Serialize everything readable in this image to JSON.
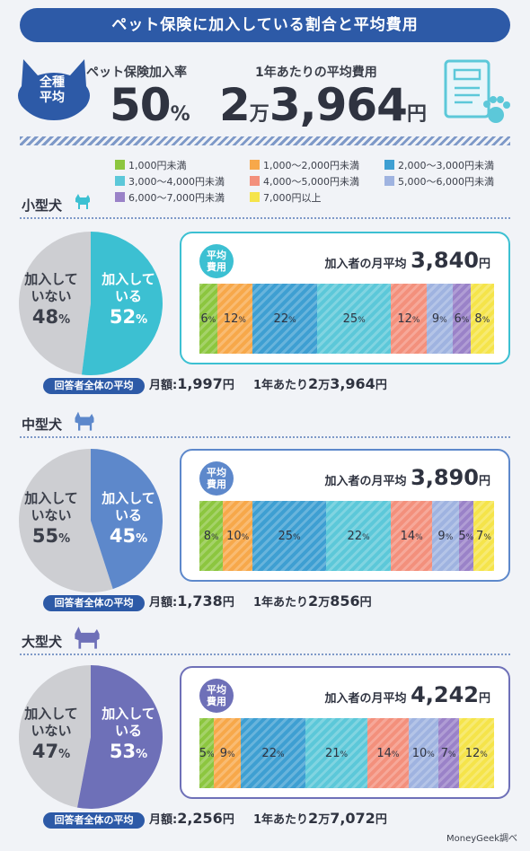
{
  "title": "ペット保険に加入している割合と平均費用",
  "summary": {
    "badge_line1": "全種",
    "badge_line2": "平均",
    "rate_label": "ペット保険加入率",
    "rate_value": "50",
    "rate_unit": "%",
    "cost_label": "1年あたりの平均費用",
    "cost_man": "2",
    "cost_man_unit": "万",
    "cost_rest": "3,964",
    "cost_yen": "円"
  },
  "legend": [
    {
      "label": "1,000円未満",
      "color": "#8cc63f"
    },
    {
      "label": "1,000〜2,000円未満",
      "color": "#f7a84a"
    },
    {
      "label": "2,000〜3,000円未満",
      "color": "#3e9fd2"
    },
    {
      "label": "3,000〜4,000円未満",
      "color": "#5cc8d9"
    },
    {
      "label": "4,000〜5,000円未満",
      "color": "#f3907c"
    },
    {
      "label": "5,000〜6,000円未満",
      "color": "#9fb3e0"
    },
    {
      "label": "6,000〜7,000円未満",
      "color": "#9a82c8"
    },
    {
      "label": "7,000円以上",
      "color": "#f5e44a"
    }
  ],
  "labels": {
    "avg_line1": "平均",
    "avg_line2": "費用",
    "monthly_avg": "加入者の月平均",
    "yen": "円",
    "respondents_avg": "回答者全体の平均",
    "monthly": "月額:",
    "yearly": "1年あたり",
    "not_joined_l1": "加入して",
    "not_joined_l2": "いない",
    "joined_l1": "加入して",
    "joined_l2": "いる",
    "pct": "%"
  },
  "chart_data": [
    {
      "type": "pie",
      "title": "小型犬",
      "slices": [
        {
          "label": "加入している",
          "value": 52
        },
        {
          "label": "加入していない",
          "value": 48
        }
      ],
      "monthly_avg_member": "3,840",
      "distribution": {
        "type": "bar",
        "values": [
          6,
          12,
          22,
          25,
          12,
          9,
          6,
          8
        ]
      },
      "resp_monthly": "1,997",
      "resp_yearly_man": "2",
      "resp_yearly_rest": "3,964",
      "color": "#3cc0d2"
    },
    {
      "type": "pie",
      "title": "中型犬",
      "slices": [
        {
          "label": "加入している",
          "value": 45
        },
        {
          "label": "加入していない",
          "value": 55
        }
      ],
      "monthly_avg_member": "3,890",
      "distribution": {
        "type": "bar",
        "values": [
          8,
          10,
          25,
          22,
          14,
          9,
          5,
          7
        ]
      },
      "resp_monthly": "1,738",
      "resp_yearly_man": "2",
      "resp_yearly_rest": "856",
      "color": "#5d88cb"
    },
    {
      "type": "pie",
      "title": "大型犬",
      "slices": [
        {
          "label": "加入している",
          "value": 53
        },
        {
          "label": "加入していない",
          "value": 47
        }
      ],
      "monthly_avg_member": "4,242",
      "distribution": {
        "type": "bar",
        "values": [
          5,
          9,
          22,
          21,
          14,
          10,
          7,
          12
        ]
      },
      "resp_monthly": "2,256",
      "resp_yearly_man": "2",
      "resp_yearly_rest": "7,072",
      "color": "#6e70b8"
    }
  ],
  "credit": "MoneyGeek調べ"
}
